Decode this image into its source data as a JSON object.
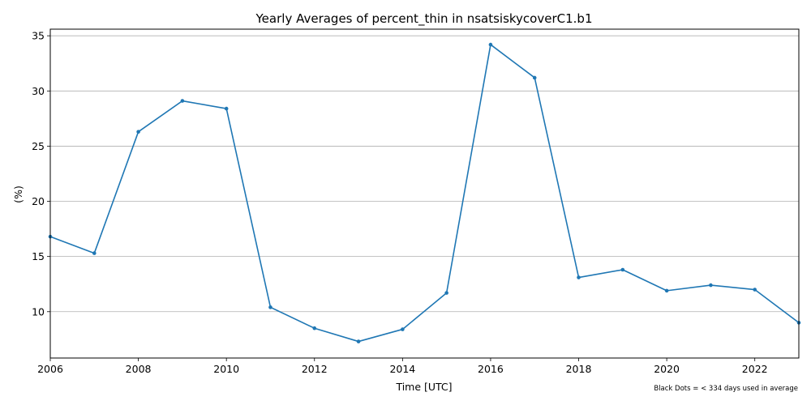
{
  "chart_data": {
    "type": "line",
    "title": "Yearly Averages of percent_thin in nsatsiskycoverC1.b1",
    "xlabel": "Time [UTC]",
    "ylabel": "(%)",
    "xlim": [
      2006,
      2023
    ],
    "ylim": [
      5.8,
      35.6
    ],
    "x_ticks": [
      2006,
      2008,
      2010,
      2012,
      2014,
      2016,
      2018,
      2020,
      2022
    ],
    "y_ticks": [
      10,
      15,
      20,
      25,
      30,
      35
    ],
    "grid": "horizontal",
    "line_color": "#1f77b4",
    "series": [
      {
        "x": [
          2006,
          2007,
          2008,
          2009,
          2010,
          2011,
          2012,
          2013,
          2014,
          2015,
          2016,
          2017,
          2018,
          2019,
          2020,
          2021,
          2022,
          2023
        ],
        "values": [
          16.8,
          15.3,
          26.3,
          29.1,
          28.4,
          10.4,
          8.5,
          7.3,
          8.4,
          11.7,
          34.2,
          31.2,
          13.1,
          13.8,
          11.9,
          12.4,
          12.0,
          9.0
        ]
      }
    ],
    "footnote": "Black Dots = < 334 days used in average"
  }
}
